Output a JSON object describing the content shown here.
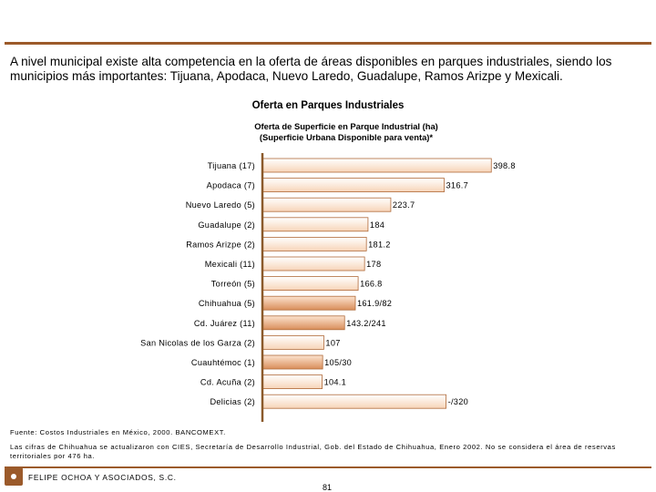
{
  "colors": {
    "accent": "#9B5A2A",
    "bar_light_top": "#FFFFFF",
    "bar_light_bottom": "#F7D4B8",
    "bar_dark_top": "#FCE3CF",
    "bar_dark_bottom": "#D98E5A",
    "bar_border": "#B06A3A",
    "axis": "#8B5A2B"
  },
  "intro_text": "A nivel municipal existe alta competencia en la oferta de áreas disponibles en parques industriales, siendo los municipios más importantes: Tijuana, Apodaca, Nuevo Laredo, Guadalupe, Ramos Arizpe y Mexicali.",
  "chart_data": {
    "type": "bar",
    "orientation": "horizontal",
    "heading": "Oferta en Parques Industriales",
    "title": "Oferta de Superficie en Parque Industrial (ha)",
    "subtitle": "(Superficie Urbana Disponible para venta)*",
    "xlim": [
      0,
      400
    ],
    "grid": false,
    "legend": "none",
    "categories": [
      "Tijuana (17)",
      "Apodaca (7)",
      "Nuevo Laredo (5)",
      "Guadalupe (2)",
      "Ramos Arizpe (2)",
      "Mexicali (11)",
      "Torreón (5)",
      "Chihuahua (5)",
      "Cd. Juárez (11)",
      "San Nicolas de los Garza (2)",
      "Cuauhtémoc (1)",
      "Cd. Acuña (2)",
      "Delicias (2)"
    ],
    "values": [
      398.8,
      316.7,
      223.7,
      184,
      181.2,
      178,
      166.8,
      161.9,
      143.2,
      107,
      105,
      104.1,
      320
    ],
    "data_labels": [
      "398.8",
      "316.7",
      "223.7",
      "184",
      "181.2",
      "178",
      "166.8",
      "161.9/82",
      "143.2/241",
      "107",
      "105/30",
      "104.1",
      "-/320"
    ],
    "highlight": [
      false,
      false,
      false,
      false,
      false,
      false,
      false,
      true,
      true,
      false,
      true,
      false,
      false
    ]
  },
  "footnotes": {
    "source": "Fuente: Costos Industriales en México, 2000. BANCOMEXT.",
    "note": "Las cifras de Chihuahua se actualizaron con CIES, Secretaría de Desarrollo Industrial, Gob. del Estado de Chihuahua, Enero 2002. No se considera el área de reservas territoriales por 476 ha."
  },
  "footer": {
    "company": "FELIPE OCHOA Y ASOCIADOS, S.C.",
    "page_number": "81"
  }
}
